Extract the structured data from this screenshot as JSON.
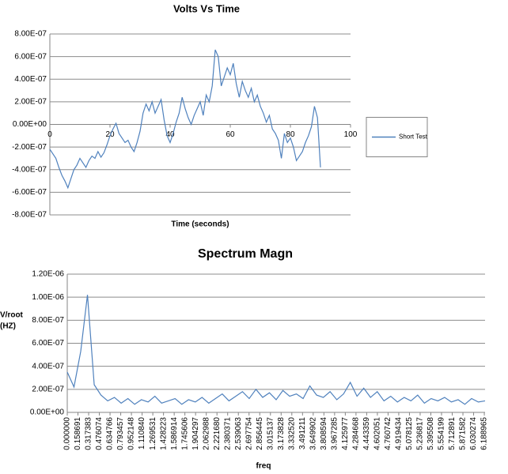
{
  "chart_data": [
    {
      "type": "line",
      "title": "Volts Vs Time",
      "xlabel": "Time (seconds)",
      "x": [
        0,
        1,
        2,
        3,
        4,
        5,
        6,
        7,
        8,
        9,
        10,
        11,
        12,
        13,
        14,
        15,
        16,
        17,
        18,
        19,
        20,
        21,
        22,
        23,
        24,
        25,
        26,
        27,
        28,
        29,
        30,
        31,
        32,
        33,
        34,
        35,
        36,
        37,
        38,
        39,
        40,
        41,
        42,
        43,
        44,
        45,
        46,
        47,
        48,
        49,
        50,
        51,
        52,
        53,
        54,
        55,
        56,
        57,
        58,
        59,
        60,
        61,
        62,
        63,
        64,
        65,
        66,
        67,
        68,
        69,
        70,
        71,
        72,
        73,
        74,
        75,
        76,
        77,
        78,
        79,
        80,
        81,
        82,
        83,
        84,
        85,
        86,
        87,
        88,
        89,
        90
      ],
      "series": [
        {
          "name": "Short Test",
          "color": "#4f81bd",
          "values": [
            -2.2e-07,
            -2.6e-07,
            -3e-07,
            -3.8e-07,
            -4.5e-07,
            -5e-07,
            -5.6e-07,
            -4.8e-07,
            -4e-07,
            -3.6e-07,
            -3e-07,
            -3.4e-07,
            -3.8e-07,
            -3.2e-07,
            -2.8e-07,
            -3e-07,
            -2.4e-07,
            -2.9e-07,
            -2.5e-07,
            -1.8e-07,
            -1e-07,
            -4e-08,
            1e-08,
            -8e-08,
            -1.2e-07,
            -1.6e-07,
            -1.4e-07,
            -2e-07,
            -2.4e-07,
            -1.6e-07,
            -6e-08,
            1e-07,
            1.8e-07,
            1.2e-07,
            2e-07,
            1e-07,
            1.6e-07,
            2.2e-07,
            4e-08,
            -1e-07,
            -1.6e-07,
            -8e-08,
            2e-08,
            1e-07,
            2.4e-07,
            1.4e-07,
            6e-08,
            0,
            8e-08,
            1.4e-07,
            2e-07,
            8e-08,
            2.6e-07,
            2e-07,
            3.4e-07,
            6.6e-07,
            6e-07,
            3.4e-07,
            4.2e-07,
            5e-07,
            4.4e-07,
            5.4e-07,
            3.6e-07,
            2.4e-07,
            3.8e-07,
            3e-07,
            2.4e-07,
            3.2e-07,
            2e-07,
            2.6e-07,
            1.6e-07,
            1e-07,
            2e-08,
            8e-08,
            -4e-08,
            -8e-08,
            -1.4e-07,
            -3e-07,
            -8e-08,
            -1.6e-07,
            -1.2e-07,
            -2e-07,
            -3.2e-07,
            -2.8e-07,
            -2.4e-07,
            -1.6e-07,
            -1e-07,
            -2e-08,
            1.6e-07,
            6e-08,
            -3.8e-07
          ]
        }
      ],
      "xlim": [
        0,
        100
      ],
      "xticks": [
        0,
        20,
        40,
        60,
        80,
        100
      ],
      "ylim": [
        -8e-07,
        8e-07
      ],
      "yticks": [
        {
          "value": -8e-07,
          "label": "-8.00E-07"
        },
        {
          "value": -6e-07,
          "label": "-6.00E-07"
        },
        {
          "value": -4e-07,
          "label": "-4.00E-07"
        },
        {
          "value": -2e-07,
          "label": "-2.00E-07"
        },
        {
          "value": 0,
          "label": "0.00E+00"
        },
        {
          "value": 2e-07,
          "label": "2.00E-07"
        },
        {
          "value": 4e-07,
          "label": "4.00E-07"
        },
        {
          "value": 6e-07,
          "label": "6.00E-07"
        },
        {
          "value": 8e-07,
          "label": "8.00E-07"
        }
      ],
      "grid": true,
      "legend": "right"
    },
    {
      "type": "line",
      "title": "Spectrum Magn",
      "xlabel": "freq",
      "ylabel": [
        "V/root",
        "(HZ)"
      ],
      "x": [
        0,
        0.1,
        0.2,
        0.3,
        0.4,
        0.5,
        0.6,
        0.7,
        0.8,
        0.9,
        1.0,
        1.1,
        1.2,
        1.3,
        1.4,
        1.5,
        1.6,
        1.7,
        1.8,
        1.9,
        2.0,
        2.1,
        2.2,
        2.3,
        2.4,
        2.5,
        2.6,
        2.7,
        2.8,
        2.9,
        3.0,
        3.1,
        3.2,
        3.3,
        3.4,
        3.5,
        3.6,
        3.7,
        3.8,
        3.9,
        4.0,
        4.1,
        4.2,
        4.3,
        4.4,
        4.5,
        4.6,
        4.7,
        4.8,
        4.9,
        5.0,
        5.1,
        5.2,
        5.3,
        5.4,
        5.5,
        5.6,
        5.7,
        5.8,
        5.9,
        6.0,
        6.1,
        6.2
      ],
      "series": [
        {
          "color": "#4f81bd",
          "values": [
            3.5e-07,
            2.2e-07,
            5.3e-07,
            1.02e-06,
            2.4e-07,
            1.5e-07,
            1e-07,
            1.3e-07,
            8e-08,
            1.2e-07,
            7e-08,
            1.1e-07,
            9e-08,
            1.4e-07,
            8e-08,
            1e-07,
            1.2e-07,
            7e-08,
            1.1e-07,
            9e-08,
            1.3e-07,
            8e-08,
            1.2e-07,
            1.6e-07,
            1e-07,
            1.4e-07,
            1.8e-07,
            1.2e-07,
            2e-07,
            1.3e-07,
            1.7e-07,
            1.1e-07,
            1.9e-07,
            1.4e-07,
            1.6e-07,
            1.2e-07,
            2.3e-07,
            1.5e-07,
            1.3e-07,
            1.8e-07,
            1.1e-07,
            1.6e-07,
            2.6e-07,
            1.4e-07,
            2.1e-07,
            1.3e-07,
            1.8e-07,
            1e-07,
            1.4e-07,
            9e-08,
            1.3e-07,
            1e-07,
            1.5e-07,
            8e-08,
            1.2e-07,
            1e-07,
            1.3e-07,
            9e-08,
            1.1e-07,
            7e-08,
            1.2e-07,
            9e-08,
            1e-07
          ]
        }
      ],
      "xlim": [
        0,
        6.2
      ],
      "xticks": [
        {
          "value": 0,
          "label": "0.000000"
        },
        {
          "value": 0.158691,
          "label": "0.158691"
        },
        {
          "value": 0.317383,
          "label": "0.317383"
        },
        {
          "value": 0.476074,
          "label": "0.476074"
        },
        {
          "value": 0.634766,
          "label": "0.634766"
        },
        {
          "value": 0.793457,
          "label": "0.793457"
        },
        {
          "value": 0.952148,
          "label": "0.952148"
        },
        {
          "value": 1.11084,
          "label": "1.110840"
        },
        {
          "value": 1.269531,
          "label": "1.269531"
        },
        {
          "value": 1.428223,
          "label": "1.428223"
        },
        {
          "value": 1.586914,
          "label": "1.586914"
        },
        {
          "value": 1.745606,
          "label": "1.745606"
        },
        {
          "value": 1.904297,
          "label": "1.904297"
        },
        {
          "value": 2.062988,
          "label": "2.062988"
        },
        {
          "value": 2.22168,
          "label": "2.221680"
        },
        {
          "value": 2.380371,
          "label": "2.380371"
        },
        {
          "value": 2.539063,
          "label": "2.539063"
        },
        {
          "value": 2.697754,
          "label": "2.697754"
        },
        {
          "value": 2.856445,
          "label": "2.856445"
        },
        {
          "value": 3.015137,
          "label": "3.015137"
        },
        {
          "value": 3.173828,
          "label": "3.173828"
        },
        {
          "value": 3.33252,
          "label": "3.332520"
        },
        {
          "value": 3.491211,
          "label": "3.491211"
        },
        {
          "value": 3.649902,
          "label": "3.649902"
        },
        {
          "value": 3.808594,
          "label": "3.808594"
        },
        {
          "value": 3.967285,
          "label": "3.967285"
        },
        {
          "value": 4.125977,
          "label": "4.125977"
        },
        {
          "value": 4.284668,
          "label": "4.284668"
        },
        {
          "value": 4.443359,
          "label": "4.443359"
        },
        {
          "value": 4.602051,
          "label": "4.602051"
        },
        {
          "value": 4.760742,
          "label": "4.760742"
        },
        {
          "value": 4.919434,
          "label": "4.919434"
        },
        {
          "value": 5.078125,
          "label": "5.078125"
        },
        {
          "value": 5.236817,
          "label": "5.236817"
        },
        {
          "value": 5.395508,
          "label": "5.395508"
        },
        {
          "value": 5.554199,
          "label": "5.554199"
        },
        {
          "value": 5.712891,
          "label": "5.712891"
        },
        {
          "value": 5.871582,
          "label": "5.871582"
        },
        {
          "value": 6.030274,
          "label": "6.030274"
        },
        {
          "value": 6.188965,
          "label": "6.188965"
        }
      ],
      "ylim": [
        0,
        1.2e-06
      ],
      "yticks": [
        {
          "value": 0,
          "label": "0.00E+00"
        },
        {
          "value": 2e-07,
          "label": "2.00E-07"
        },
        {
          "value": 4e-07,
          "label": "4.00E-07"
        },
        {
          "value": 6e-07,
          "label": "6.00E-07"
        },
        {
          "value": 8e-07,
          "label": "8.00E-07"
        },
        {
          "value": 1e-06,
          "label": "1.00E-06"
        },
        {
          "value": 1.2e-06,
          "label": "1.20E-06"
        }
      ],
      "grid": true
    }
  ]
}
